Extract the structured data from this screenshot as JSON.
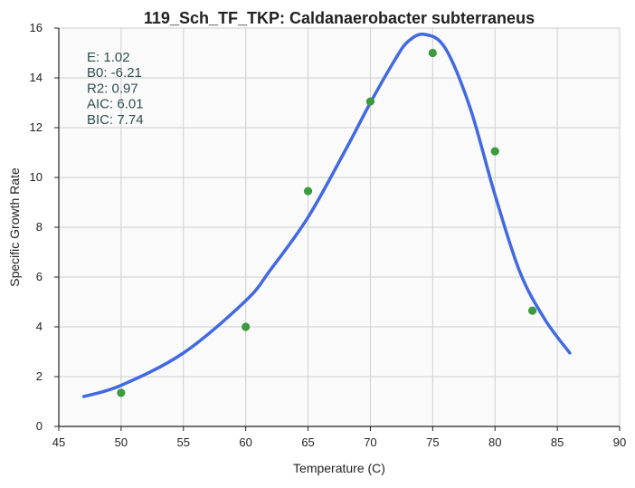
{
  "chart_data": {
    "type": "scatter",
    "title": "119_Sch_TF_TKP: Caldanaerobacter subterraneus",
    "xlabel": "Temperature (C)",
    "ylabel": "Specific Growth Rate",
    "xlim": [
      45,
      90
    ],
    "ylim": [
      0,
      16
    ],
    "x_ticks": [
      "45",
      "50",
      "55",
      "60",
      "65",
      "70",
      "75",
      "80",
      "85",
      "90"
    ],
    "y_ticks": [
      "0",
      "2",
      "4",
      "6",
      "8",
      "10",
      "12",
      "14",
      "16"
    ],
    "grid": true,
    "points": {
      "color": "#3e9a3e",
      "x": [
        50,
        60,
        65,
        70,
        75,
        80,
        83
      ],
      "y": [
        1.35,
        4.0,
        9.45,
        13.05,
        15.0,
        11.05,
        4.65
      ]
    },
    "fit_curve": {
      "color": "#4169e1",
      "x": [
        47,
        50,
        55,
        60,
        62,
        65,
        68,
        70,
        72,
        73,
        74.3,
        76,
        78,
        80,
        82,
        84,
        86
      ],
      "y": [
        1.2,
        1.65,
        2.95,
        5.05,
        6.3,
        8.4,
        11.1,
        13.0,
        14.75,
        15.45,
        15.75,
        15.2,
        12.8,
        9.3,
        6.2,
        4.3,
        2.95
      ]
    },
    "stats": [
      {
        "label": "E:",
        "value": "1.02"
      },
      {
        "label": "B0:",
        "value": "-6.21"
      },
      {
        "label": "R2:",
        "value": "0.97"
      },
      {
        "label": "AIC:",
        "value": "6.01"
      },
      {
        "label": "BIC:",
        "value": "7.74"
      }
    ]
  }
}
